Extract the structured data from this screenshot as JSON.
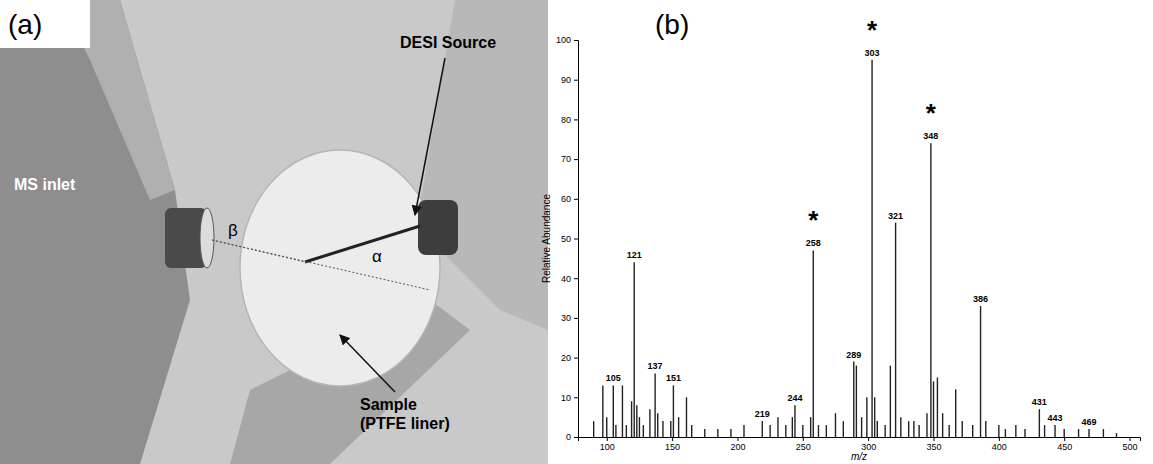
{
  "panel_a": {
    "label": "(a)",
    "desi_source": "DESI Source",
    "ms_inlet": "MS inlet",
    "beta": "β",
    "alpha": "α",
    "sample": [
      "Sample",
      "(PTFE liner)"
    ]
  },
  "chart_data": {
    "type": "bar",
    "panel_label": "(b)",
    "x_label": "m/z",
    "y_label": "Relative Abundance",
    "color": "#222222",
    "x": [
      90,
      97,
      100,
      105,
      107,
      112,
      115,
      119,
      121,
      123,
      125,
      128,
      133,
      137,
      139,
      143,
      149,
      151,
      155,
      161,
      165,
      175,
      185,
      195,
      205,
      219,
      225,
      231,
      237,
      242,
      244,
      250,
      256,
      258,
      262,
      268,
      275,
      281,
      289,
      291,
      295,
      299,
      303,
      305,
      307,
      313,
      317,
      321,
      325,
      331,
      335,
      339,
      345,
      348,
      350,
      353,
      357,
      362,
      367,
      372,
      380,
      386,
      390,
      400,
      405,
      413,
      420,
      431,
      435,
      443,
      450,
      461,
      469,
      480,
      490
    ],
    "values": [
      4,
      13,
      5,
      13,
      3,
      13,
      3,
      9,
      44,
      8,
      5,
      3,
      7,
      16,
      6,
      4,
      4,
      13,
      5,
      10,
      3,
      2,
      2,
      2,
      3,
      4,
      3,
      5,
      3,
      5,
      8,
      3,
      5,
      47,
      3,
      3,
      6,
      4,
      19,
      18,
      5,
      10,
      95,
      10,
      4,
      3,
      18,
      54,
      5,
      4,
      4,
      3,
      6,
      74,
      14,
      15,
      6,
      3,
      12,
      4,
      3,
      33,
      4,
      3,
      2,
      3,
      2,
      7,
      3,
      3,
      2,
      2,
      2,
      2,
      1
    ],
    "labeled_peaks": [
      105,
      121,
      137,
      151,
      219,
      244,
      258,
      289,
      303,
      321,
      348,
      386,
      431,
      443,
      469
    ],
    "annotations": [
      {
        "x": 258,
        "text": "*"
      },
      {
        "x": 303,
        "text": "*"
      },
      {
        "x": 348,
        "text": "*"
      }
    ],
    "xlim": [
      78,
      508
    ],
    "xticks": [
      100,
      150,
      200,
      250,
      300,
      350,
      400,
      450,
      500
    ],
    "ylim": [
      0,
      100
    ],
    "yticks": [
      0,
      10,
      20,
      30,
      40,
      50,
      60,
      70,
      80,
      90,
      100
    ],
    "grid": false
  }
}
